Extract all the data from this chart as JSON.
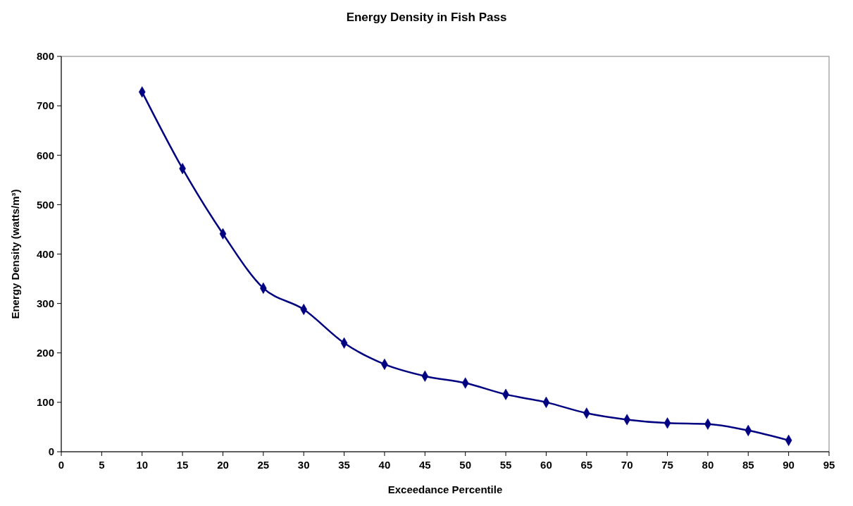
{
  "chart_data": {
    "type": "line",
    "title": "Energy Density in Fish Pass",
    "xlabel": "Exceedance Percentile",
    "ylabel": "Energy Density (watts/m³)",
    "x": [
      10,
      15,
      20,
      25,
      30,
      35,
      40,
      45,
      50,
      55,
      60,
      65,
      70,
      75,
      80,
      85,
      90
    ],
    "series": [
      {
        "color": "#000080",
        "values": [
          728,
          573,
          441,
          331,
          288,
          220,
          177,
          153,
          139,
          116,
          100,
          78,
          65,
          58,
          56,
          43,
          23
        ]
      }
    ],
    "xlim": [
      0,
      95
    ],
    "xticks": [
      0,
      5,
      10,
      15,
      20,
      25,
      30,
      35,
      40,
      45,
      50,
      55,
      60,
      65,
      70,
      75,
      80,
      85,
      90,
      95
    ],
    "ylim": [
      0,
      800
    ],
    "yticks": [
      0,
      100,
      200,
      300,
      400,
      500,
      600,
      700,
      800
    ],
    "grid": false,
    "marker": "diamond",
    "line_style": "solid"
  }
}
